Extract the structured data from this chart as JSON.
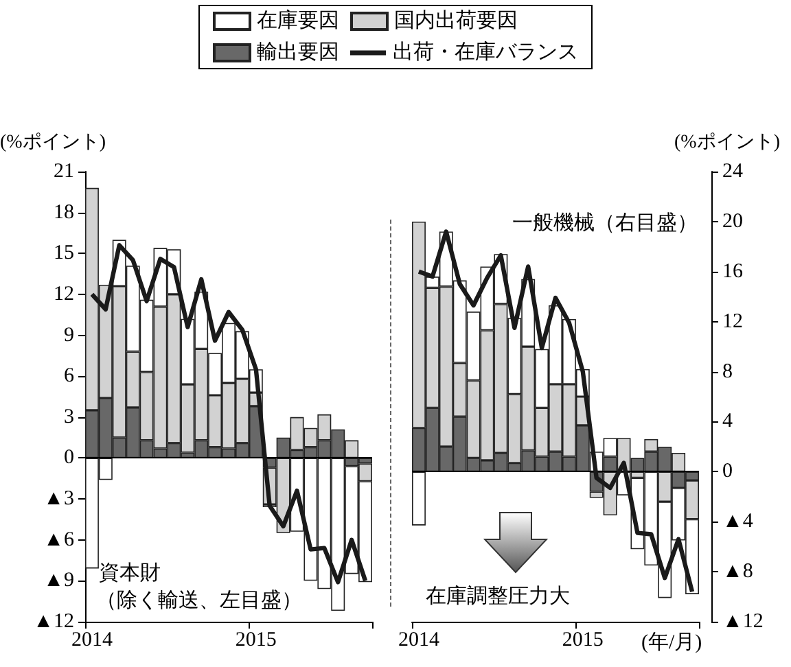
{
  "chart_data": [
    {
      "type": "bar",
      "stacked": true,
      "legend": "top",
      "marker": "none",
      "ylabel": "(%ポイント)",
      "categories": [
        "2014",
        null,
        null,
        null,
        null,
        null,
        null,
        null,
        null,
        null,
        null,
        null,
        "2015",
        null,
        null,
        null,
        null,
        null,
        null,
        null,
        null
      ],
      "ylim": [
        -12,
        21
      ],
      "yticks": [
        {
          "value": -12,
          "label": "▲12"
        },
        {
          "value": -9,
          "label": "▲9"
        },
        {
          "value": -6,
          "label": "▲6"
        },
        {
          "value": -3,
          "label": "▲3"
        },
        0,
        3,
        6,
        9,
        12,
        15,
        18,
        21
      ],
      "ref_lines": [
        {
          "axis": "y",
          "value": 0,
          "color": "#000000"
        }
      ],
      "annotations": [
        "資本財",
        "（除く輸送、左目盛）"
      ],
      "series": [
        {
          "name": "輸出要因",
          "color": "#686868",
          "values": [
            3.5,
            4.4,
            1.5,
            3.7,
            1.3,
            0.7,
            1.1,
            0.4,
            1.3,
            0.8,
            0.7,
            1.1,
            3.8,
            -0.7,
            1.5,
            0.6,
            0.8,
            1.3,
            2.1,
            -0.6,
            -0.4
          ]
        },
        {
          "name": "国内出荷要因",
          "color": "#d2d2d2",
          "values": [
            16.3,
            8.3,
            11.1,
            4.1,
            5.0,
            10.4,
            10.9,
            5.0,
            6.7,
            3.8,
            4.8,
            4.7,
            1.0,
            -2.7,
            -5.5,
            2.4,
            1.4,
            1.9,
            null,
            1.3,
            -1.3
          ]
        },
        {
          "name": "在庫要因",
          "color": "#ffffff",
          "values": [
            -8.1,
            -1.6,
            3.4,
            6.3,
            5.3,
            4.3,
            3.3,
            4.8,
            4.2,
            3.1,
            4.4,
            3.5,
            1.7,
            -0.2,
            null,
            -5.4,
            -9.0,
            -9.6,
            -11.2,
            -7.9,
            -7.4
          ]
        },
        {
          "name": "出荷・在庫バランス",
          "type": "line",
          "color": "#1a1a1a",
          "values": [
            12.0,
            10.9,
            15.6,
            14.5,
            11.5,
            14.6,
            14.0,
            9.6,
            13.1,
            8.6,
            10.7,
            9.4,
            6.5,
            -3.5,
            -5.0,
            -2.4,
            -6.7,
            -6.6,
            -9.1,
            -6.0,
            -9.0
          ]
        }
      ]
    },
    {
      "type": "bar",
      "stacked": true,
      "marker": "none",
      "y2label": "(%ポイント)",
      "xlabel": "(年/月)",
      "categories": [
        "2014",
        null,
        null,
        null,
        null,
        null,
        null,
        null,
        null,
        null,
        null,
        null,
        "2015",
        null,
        null,
        null,
        null,
        null,
        null,
        null,
        null
      ],
      "y2lim": [
        -12,
        24
      ],
      "y2ticks": [
        {
          "value": -12,
          "label": "▲12"
        },
        {
          "value": -8,
          "label": "▲8"
        },
        {
          "value": -4,
          "label": "▲4"
        },
        0,
        4,
        8,
        12,
        16,
        20,
        24
      ],
      "ref_lines": [
        {
          "axis": "y2",
          "value": 0,
          "color": "#000000"
        }
      ],
      "annotations": [
        "一般機械（右目盛）",
        "在庫調整圧力大"
      ],
      "series": [
        {
          "name": "輸出要因",
          "color": "#686868",
          "axis": "y2",
          "values": [
            3.5,
            5.1,
            2.0,
            4.4,
            1.1,
            0.9,
            1.5,
            0.7,
            1.7,
            1.2,
            1.6,
            1.2,
            3.7,
            -1.6,
            1.2,
            null,
            1.1,
            1.6,
            2.0,
            -1.3,
            -0.7
          ]
        },
        {
          "name": "国内出荷要因",
          "color": "#d2d2d2",
          "axis": "y2",
          "values": [
            16.5,
            9.6,
            12.8,
            4.3,
            6.2,
            10.4,
            11.9,
            5.5,
            8.3,
            3.9,
            5.4,
            5.8,
            2.3,
            -0.5,
            -3.5,
            2.7,
            -0.5,
            1.0,
            -2.4,
            1.5,
            -3.1
          ]
        },
        {
          "name": "在庫要因",
          "color": "#ffffff",
          "axis": "y2",
          "values": [
            -4.3,
            0.9,
            4.4,
            6.6,
            5.5,
            5.1,
            4.0,
            6.1,
            5.4,
            4.7,
            6.3,
            5.2,
            2.2,
            1.6,
            1.5,
            -1.9,
            -5.7,
            -7.5,
            -7.7,
            -4.2,
            -6.0
          ]
        },
        {
          "name": "出荷・在庫バランス",
          "type": "line",
          "color": "#1a1a1a",
          "axis": "y2",
          "values": [
            16.0,
            15.6,
            19.2,
            15.0,
            13.3,
            15.5,
            17.3,
            11.5,
            16.4,
            9.9,
            13.9,
            11.9,
            8.0,
            -0.5,
            -1.3,
            0.7,
            -4.9,
            -5.0,
            -8.5,
            -5.4,
            -9.6
          ]
        }
      ]
    }
  ]
}
